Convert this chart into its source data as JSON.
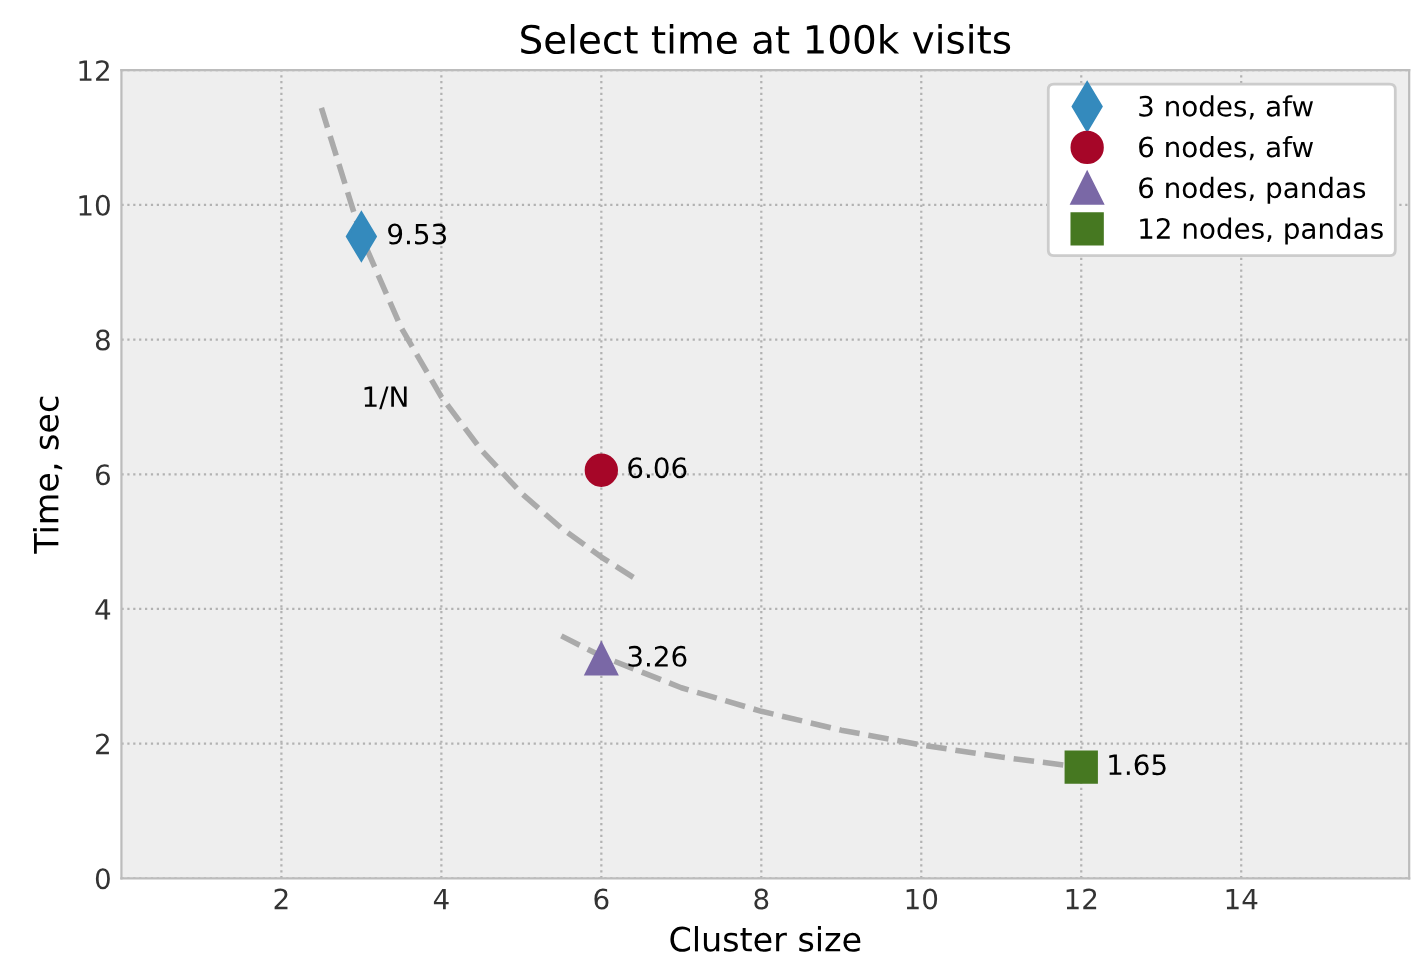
{
  "chart_data": {
    "type": "scatter",
    "title": "Select time at 100k visits",
    "xlabel": "Cluster size",
    "ylabel": "Time, sec",
    "xlim": [
      0,
      16.1
    ],
    "xticks": [
      2,
      4,
      6,
      8,
      10,
      12,
      14
    ],
    "ylim": [
      0,
      12
    ],
    "yticks": [
      0,
      2,
      4,
      6,
      8,
      10,
      12
    ],
    "grid": true,
    "legend": "top right",
    "series": [
      {
        "name": "3 nodes, afw",
        "color": "#348abd",
        "marker": "diamond",
        "x": [
          3
        ],
        "values": [
          9.53
        ],
        "value_labels": [
          "9.53"
        ]
      },
      {
        "name": "6 nodes, afw",
        "color": "#a60628",
        "marker": "circle",
        "x": [
          6
        ],
        "values": [
          6.06
        ],
        "value_labels": [
          "6.06"
        ]
      },
      {
        "name": "6 nodes, pandas",
        "color": "#7a68a6",
        "marker": "triangle",
        "x": [
          6
        ],
        "values": [
          3.26
        ],
        "value_labels": [
          "3.26"
        ]
      },
      {
        "name": "12 nodes, pandas",
        "color": "#467821",
        "marker": "square",
        "x": [
          12
        ],
        "values": [
          1.65
        ],
        "value_labels": [
          "1.65"
        ]
      },
      {
        "type": "line",
        "color": "#aaaaaa",
        "line_style": "dashed",
        "x": [
          2.5,
          3,
          3.5,
          4,
          4.5,
          5,
          5.5,
          6,
          6.4
        ],
        "values": [
          11.44,
          9.53,
          8.17,
          7.15,
          6.36,
          5.72,
          5.2,
          4.77,
          4.47
        ]
      },
      {
        "type": "line",
        "color": "#aaaaaa",
        "line_style": "dashed",
        "x": [
          5.5,
          6,
          7,
          8,
          9,
          10,
          11,
          12
        ],
        "values": [
          3.6,
          3.3,
          2.83,
          2.48,
          2.2,
          1.98,
          1.8,
          1.65
        ]
      }
    ],
    "annotations": [
      "1/N"
    ]
  }
}
